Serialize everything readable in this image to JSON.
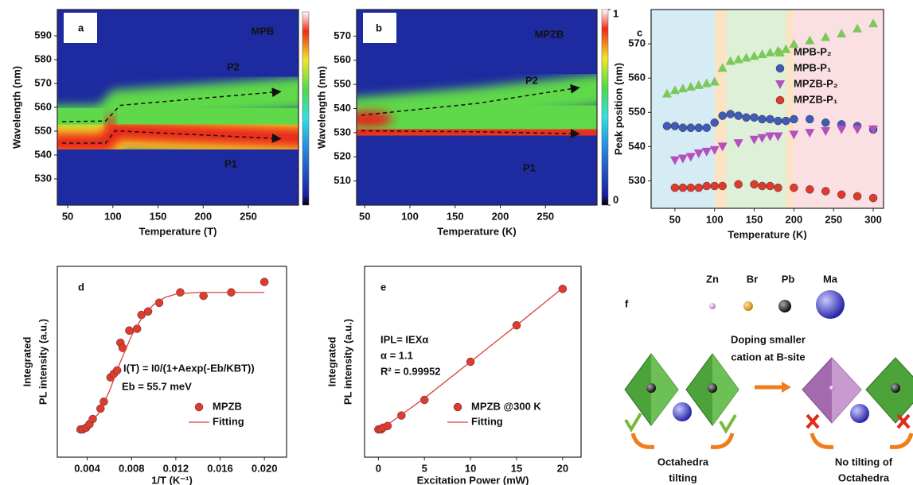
{
  "chart_data": [
    {
      "type": "heatmap",
      "panel": "a",
      "title": "MPB",
      "xlabel": "Temperature (T)",
      "ylabel": "Wavelength (nm)",
      "xlim": [
        38.5,
        305.5
      ],
      "ylim": [
        519,
        601
      ],
      "xticks": [
        50,
        100,
        150,
        200,
        250
      ],
      "yticks": [
        530,
        540,
        550,
        560,
        570,
        580,
        590
      ],
      "annotations": [
        "P2",
        "P1"
      ]
    },
    {
      "type": "heatmap",
      "panel": "b",
      "title": "MPZB",
      "xlabel": "Temperature (K)",
      "ylabel": "Wavelength (nm)",
      "xlim": [
        41,
        307
      ],
      "ylim": [
        500,
        581
      ],
      "xticks": [
        50,
        100,
        150,
        200,
        250
      ],
      "yticks": [
        510,
        520,
        530,
        540,
        550,
        560,
        570
      ],
      "colorbar_lim": [
        0,
        1
      ],
      "colorbar_ticks": [
        0,
        1
      ],
      "annotations": [
        "P2",
        "P1"
      ]
    },
    {
      "type": "scatter",
      "panel": "c",
      "xlabel": "Temperature (K)",
      "ylabel": "Peak position (nm)",
      "xlim": [
        20,
        313
      ],
      "ylim": [
        522,
        580
      ],
      "xticks": [
        50,
        100,
        150,
        200,
        250,
        300
      ],
      "yticks": [
        530,
        540,
        550,
        560,
        570
      ],
      "regions": [
        {
          "range": [
            20,
            100
          ],
          "color": "#d6ecf5"
        },
        {
          "range": [
            100,
            115
          ],
          "color": "#fbe3c6"
        },
        {
          "range": [
            115,
            190
          ],
          "color": "#def0d8"
        },
        {
          "range": [
            190,
            200
          ],
          "color": "#fbe3c6"
        },
        {
          "range": [
            200,
            313
          ],
          "color": "#fbe0e3"
        }
      ],
      "series": [
        {
          "name": "MPB-P₂",
          "color": "#7cc85a",
          "marker": "triangle-up",
          "x": [
            40,
            50,
            60,
            70,
            80,
            90,
            100,
            110,
            120,
            130,
            140,
            150,
            160,
            170,
            180,
            190,
            200,
            220,
            240,
            260,
            280,
            300
          ],
          "values": [
            555.5,
            556.5,
            557,
            557.5,
            558,
            558.5,
            559,
            563,
            565,
            565.5,
            566,
            566.5,
            567,
            567.5,
            568,
            568.5,
            570,
            571,
            572,
            573,
            574.5,
            576
          ]
        },
        {
          "name": "MPB-P₁",
          "color": "#3f5bb8",
          "marker": "circle",
          "x": [
            40,
            50,
            60,
            70,
            80,
            90,
            100,
            110,
            120,
            130,
            140,
            150,
            160,
            170,
            180,
            190,
            200,
            220,
            240,
            260,
            280,
            300
          ],
          "values": [
            546,
            546,
            545.5,
            545.5,
            545.5,
            545.5,
            547,
            549,
            549.5,
            549,
            548.5,
            548.5,
            548,
            548,
            547.5,
            547.5,
            548,
            548,
            547,
            546.5,
            546,
            545
          ]
        },
        {
          "name": "MPZB-P₂",
          "color": "#b44fc0",
          "marker": "triangle-down",
          "x": [
            50,
            60,
            70,
            80,
            90,
            100,
            110,
            130,
            150,
            160,
            170,
            180,
            200,
            220,
            240,
            260,
            280,
            300
          ],
          "values": [
            536,
            536.5,
            537,
            538,
            538.5,
            539,
            540,
            541,
            542,
            542.5,
            543,
            543,
            543.5,
            544,
            544.5,
            545,
            545,
            545
          ]
        },
        {
          "name": "MPZB-P₁",
          "color": "#e03a2c",
          "marker": "circle",
          "x": [
            50,
            60,
            70,
            80,
            90,
            100,
            110,
            130,
            150,
            160,
            170,
            180,
            200,
            220,
            240,
            260,
            280,
            300
          ],
          "values": [
            528,
            528,
            528,
            528,
            528.5,
            528.5,
            528.5,
            529,
            529,
            528.5,
            528.5,
            528,
            528,
            527.5,
            527,
            526,
            525.5,
            525
          ]
        }
      ]
    },
    {
      "type": "scatter",
      "panel": "d",
      "xlabel": "1/T (K⁻¹)",
      "ylabel": [
        "Integrated",
        "PL intensity (a.u.)"
      ],
      "xlim": [
        0.0013,
        0.022
      ],
      "ylim": [
        0,
        1.1
      ],
      "xticks": [
        0.004,
        0.008,
        0.012,
        0.016,
        {
          "value": 0.02,
          "label": "0.020"
        }
      ],
      "annotations": [
        "I(T) = I0/(1+Aexp(-Eb/KBT))",
        "Eb = 55.7 meV"
      ],
      "series": [
        {
          "name": "MPZB",
          "color": "#e03a2c",
          "marker": "circle",
          "x": [
            0.0034,
            0.0036,
            0.0039,
            0.0042,
            0.0045,
            0.0052,
            0.0055,
            0.0061,
            0.0064,
            0.0067,
            0.007,
            0.0072,
            0.0078,
            0.0085,
            0.0089,
            0.0095,
            0.0105,
            0.0124,
            0.0145,
            0.017,
            0.02
          ],
          "values": [
            0.16,
            0.16,
            0.17,
            0.19,
            0.22,
            0.28,
            0.32,
            0.46,
            0.48,
            0.5,
            0.66,
            0.63,
            0.73,
            0.74,
            0.82,
            0.84,
            0.89,
            0.95,
            0.93,
            0.95,
            1.01
          ]
        },
        {
          "name": "Fitting",
          "color": "#d9423a",
          "marker": "line",
          "x": [
            0.003,
            0.004,
            0.005,
            0.006,
            0.007,
            0.008,
            0.009,
            0.01,
            0.011,
            0.012,
            0.014,
            0.02
          ],
          "values": [
            0.15,
            0.18,
            0.25,
            0.38,
            0.55,
            0.7,
            0.81,
            0.88,
            0.92,
            0.94,
            0.95,
            0.95
          ]
        }
      ]
    },
    {
      "type": "scatter",
      "panel": "e",
      "xlabel": "Excitation Power (mW)",
      "ylabel": [
        "Integrated",
        "PL intensity (a.u.)"
      ],
      "xlim": [
        -1.5,
        22
      ],
      "ylim": [
        0,
        1.1
      ],
      "xticks": [
        0,
        5,
        10,
        15,
        20
      ],
      "annotations": [
        "IPL= IEXα",
        "α = 1.1",
        "R² = 0.99952"
      ],
      "series": [
        {
          "name": "MPZB @300 K",
          "color": "#e03a2c",
          "marker": "circle",
          "x": [
            0,
            0.3,
            0.5,
            1,
            2.5,
            5,
            10,
            15,
            20
          ],
          "values": [
            0.16,
            0.16,
            0.17,
            0.18,
            0.24,
            0.33,
            0.55,
            0.76,
            0.97
          ]
        },
        {
          "name": "Fitting",
          "color": "#d9423a",
          "marker": "line",
          "x": [
            0,
            5,
            10,
            15,
            20
          ],
          "values": [
            0.15,
            0.34,
            0.55,
            0.76,
            0.975
          ]
        }
      ]
    }
  ],
  "diagram": {
    "label": "f",
    "atoms": [
      "Zn",
      "Br",
      "Pb",
      "Ma"
    ],
    "caption": [
      "Doping smaller",
      "cation at B-site"
    ],
    "left": [
      "Octahedra",
      "tilting"
    ],
    "right": [
      "No tilting of",
      "Octahedra"
    ]
  }
}
